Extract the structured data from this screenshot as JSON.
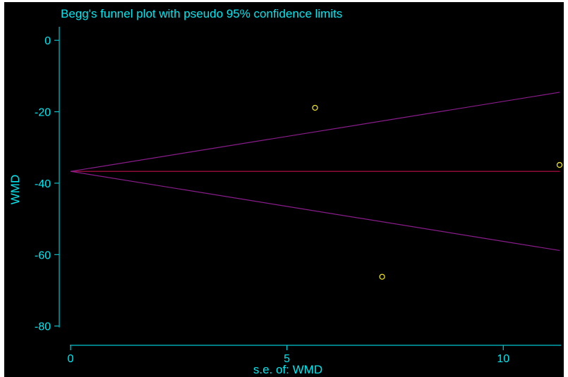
{
  "chart_data": {
    "type": "scatter",
    "title": "Begg's funnel plot with pseudo 95% confidence limits",
    "xlabel": "s.e. of: WMD",
    "ylabel": "WMD",
    "xlim": [
      0,
      11.3
    ],
    "ylim": [
      -85,
      3
    ],
    "xticks": [
      "0",
      "5",
      "10"
    ],
    "xtick_values": [
      0,
      5,
      10
    ],
    "yticks": [
      "0",
      "-20",
      "-40",
      "-60",
      "-80"
    ],
    "ytick_values": [
      0,
      -20,
      -40,
      -60,
      -80
    ],
    "pooled_estimate": -36.7,
    "ci_multiplier": 1.96,
    "line_end_se": 11.3,
    "points": [
      {
        "x": 5.65,
        "y": -18.9
      },
      {
        "x": 7.2,
        "y": -66.2
      },
      {
        "x": 11.3,
        "y": -34.9
      }
    ],
    "colors": {
      "background": "#000000",
      "text": "#00e5ee",
      "axes": "#00c8d0",
      "pooled_line": "#c0104a",
      "ci_lines": "#8a1c8c",
      "points": "#e8e020"
    }
  }
}
